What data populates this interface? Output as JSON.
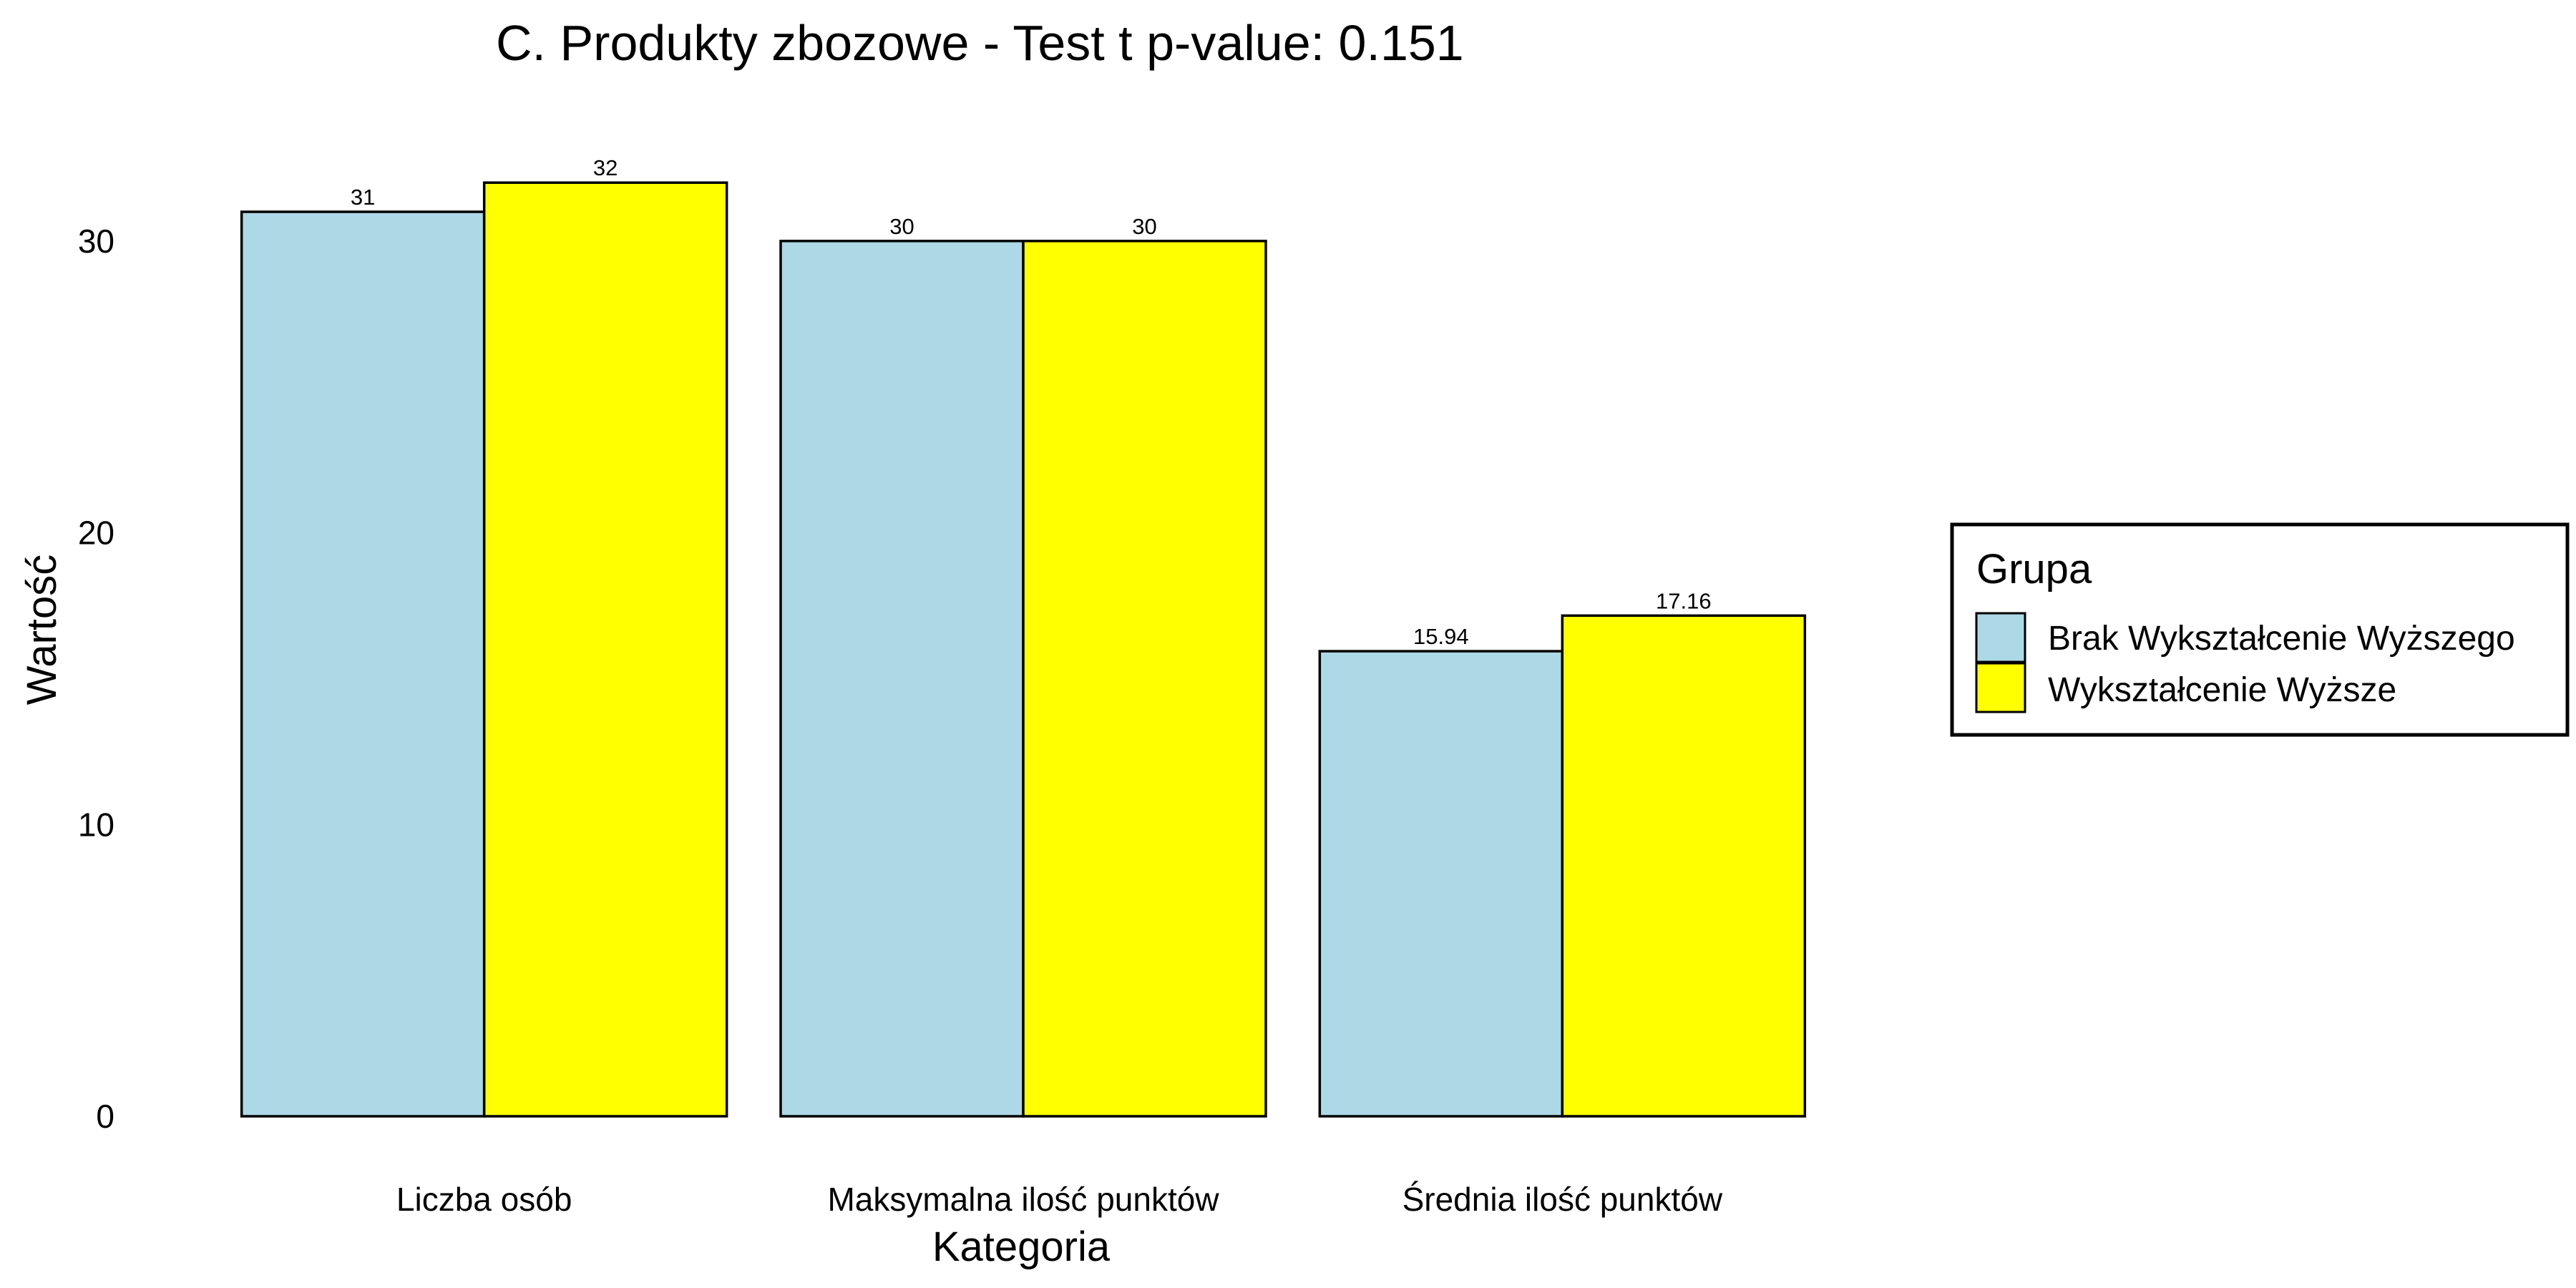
{
  "chart_data": {
    "type": "bar",
    "title": "C. Produkty zbozowe - Test t p-value: 0.151",
    "xlabel": "Kategoria",
    "ylabel": "Wartość",
    "categories": [
      "Liczba osób",
      "Maksymalna ilość punktów",
      "Średnia ilość punktów"
    ],
    "series": [
      {
        "name": "Brak Wykształcenie Wyższego",
        "color": "#ADD8E6",
        "values": [
          31,
          30,
          15.94
        ],
        "labels": [
          "31",
          "30",
          "15.94"
        ]
      },
      {
        "name": "Wykształcenie Wyższe",
        "color": "#FFFF00",
        "values": [
          32,
          30,
          17.16
        ],
        "labels": [
          "32",
          "30",
          "17.16"
        ]
      }
    ],
    "yticks": [
      0,
      10,
      20,
      30
    ],
    "ytick_labels": [
      "0",
      "10",
      "20",
      "30"
    ],
    "ylim": [
      0,
      33.6
    ],
    "grid": false,
    "legend": {
      "title": "Grupa",
      "placement": "right"
    }
  }
}
